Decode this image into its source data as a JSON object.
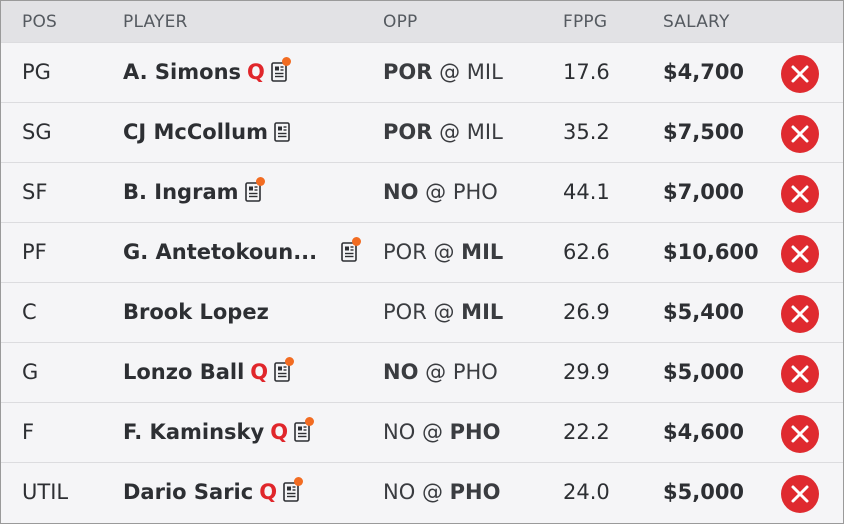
{
  "header": {
    "pos": "POS",
    "player": "PLAYER",
    "opp": "OPP",
    "fppg": "FPPG",
    "salary": "SALARY"
  },
  "colors": {
    "header_bg": "#e2e2e5",
    "row_bg": "#f5f5f7",
    "questionable": "#e0262b",
    "news_dot": "#f26c22",
    "remove": "#df2a2f"
  },
  "icons": {
    "news": "news-doc-icon",
    "remove": "remove-x-icon"
  },
  "rows": [
    {
      "pos": "PG",
      "player": "A. Simons",
      "status": "Q",
      "news_alert": true,
      "opp_team": "POR",
      "opp_sep": "@",
      "opp_other": "MIL",
      "own_team_home": false,
      "fppg": "17.6",
      "salary": "$4,700"
    },
    {
      "pos": "SG",
      "player": "CJ McCollum",
      "status": "",
      "news_alert": false,
      "opp_team": "POR",
      "opp_sep": "@",
      "opp_other": "MIL",
      "own_team_home": false,
      "fppg": "35.2",
      "salary": "$7,500"
    },
    {
      "pos": "SF",
      "player": "B. Ingram",
      "status": "",
      "news_alert": true,
      "opp_team": "NO",
      "opp_sep": "@",
      "opp_other": "PHO",
      "own_team_home": false,
      "fppg": "44.1",
      "salary": "$7,000"
    },
    {
      "pos": "PF",
      "player": "G. Antetokoun...",
      "status": "",
      "news_alert": true,
      "opp_team": "POR",
      "opp_sep": "@",
      "opp_other": "MIL",
      "own_team_home": true,
      "fppg": "62.6",
      "salary": "$10,600"
    },
    {
      "pos": "C",
      "player": "Brook Lopez",
      "status": "",
      "news_alert": false,
      "no_news": true,
      "opp_team": "POR",
      "opp_sep": "@",
      "opp_other": "MIL",
      "own_team_home": true,
      "fppg": "26.9",
      "salary": "$5,400"
    },
    {
      "pos": "G",
      "player": "Lonzo Ball",
      "status": "Q",
      "news_alert": true,
      "opp_team": "NO",
      "opp_sep": "@",
      "opp_other": "PHO",
      "own_team_home": false,
      "fppg": "29.9",
      "salary": "$5,000"
    },
    {
      "pos": "F",
      "player": "F. Kaminsky",
      "status": "Q",
      "news_alert": true,
      "opp_team": "NO",
      "opp_sep": "@",
      "opp_other": "PHO",
      "own_team_home": true,
      "fppg": "22.2",
      "salary": "$4,600"
    },
    {
      "pos": "UTIL",
      "player": "Dario Saric",
      "status": "Q",
      "news_alert": true,
      "opp_team": "NO",
      "opp_sep": "@",
      "opp_other": "PHO",
      "own_team_home": true,
      "fppg": "24.0",
      "salary": "$5,000"
    }
  ]
}
